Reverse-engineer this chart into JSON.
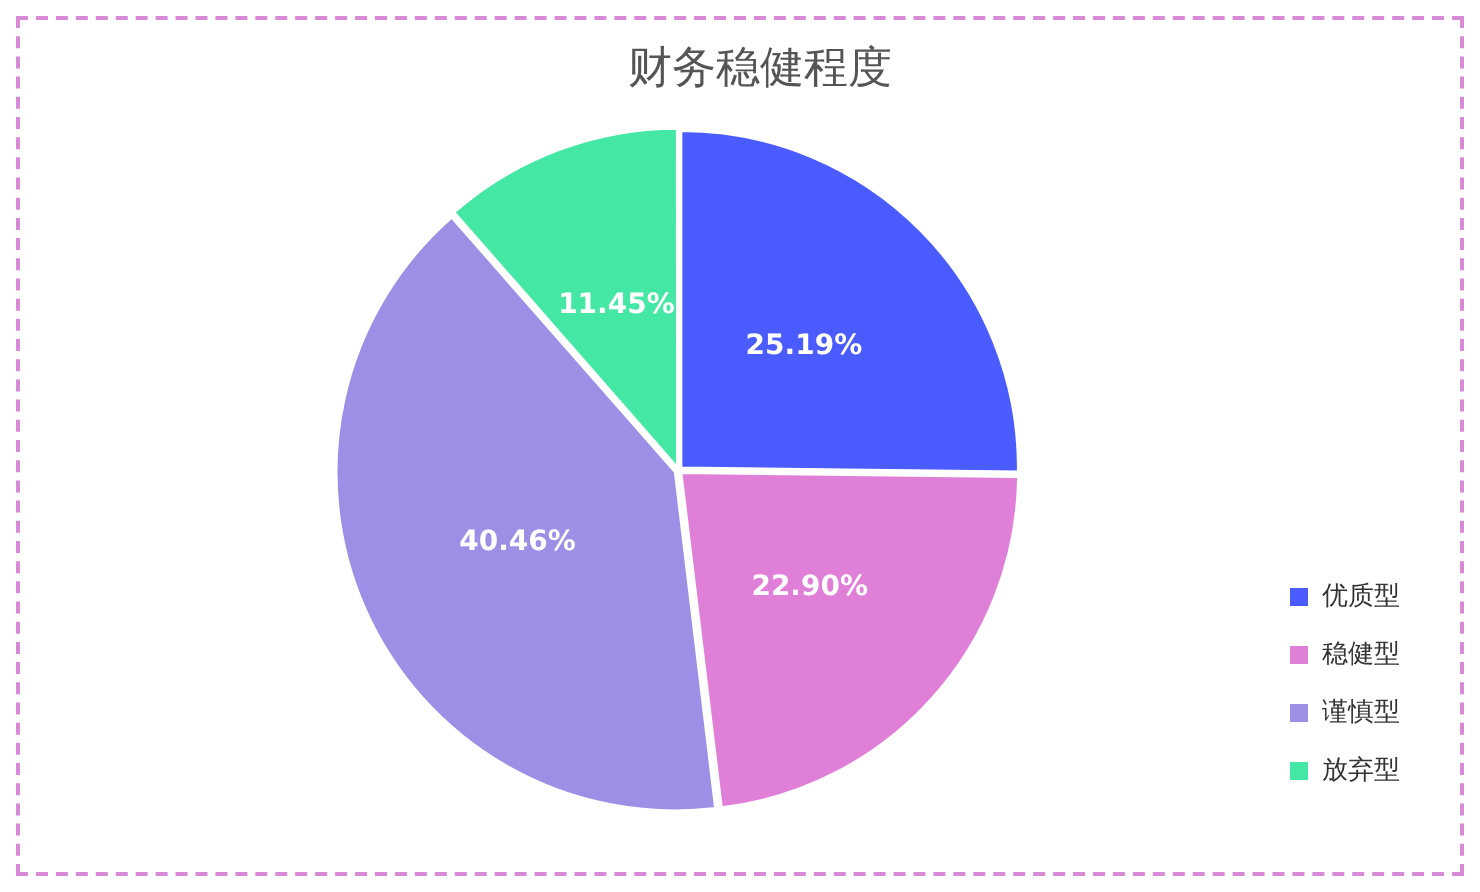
{
  "chart_data": {
    "type": "pie",
    "title": "财务稳健程度",
    "categories": [
      "优质型",
      "稳健型",
      "谨慎型",
      "放弃型"
    ],
    "values": [
      25.19,
      22.9,
      40.46,
      11.45
    ],
    "colors": [
      "#4a5cff",
      "#e07fd8",
      "#9b8fe6",
      "#44e8a4"
    ],
    "value_labels": [
      "25.19%",
      "22.90%",
      "40.46%",
      "11.45%"
    ],
    "legend": "bottom right"
  }
}
